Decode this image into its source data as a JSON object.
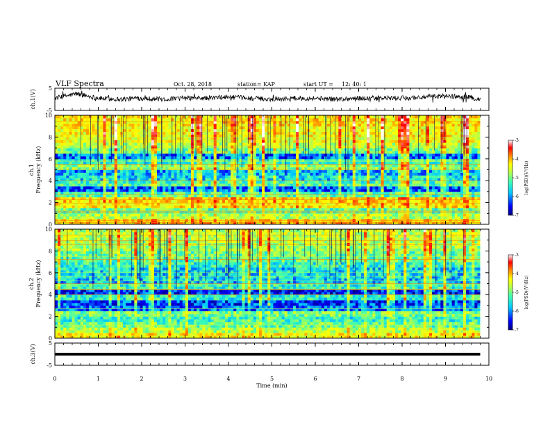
{
  "header": {
    "title": "VLF Spectra",
    "date": "Oct. 28, 2018",
    "station": "station= KAP",
    "start_label": "start  UT =",
    "start_time": "12: 40: 1"
  },
  "chart_data": [
    {
      "type": "line",
      "name": "ch1-waveform",
      "ylabel": "ch.1(V)",
      "ylim": [
        -5,
        5
      ],
      "yticks": [
        "5",
        "-5"
      ],
      "xlim": [
        0,
        10
      ],
      "x": [
        0.0,
        0.5,
        1.0,
        1.5,
        2.0,
        2.5,
        3.0,
        3.5,
        4.0,
        4.5,
        5.0,
        5.5,
        6.0,
        6.5,
        7.0,
        7.5,
        8.0,
        8.5,
        9.0,
        9.5,
        9.8
      ],
      "y": [
        0.5,
        2.5,
        0.5,
        0,
        0.5,
        0,
        0.5,
        0.5,
        1.0,
        0.5,
        0,
        0.5,
        0.5,
        0,
        0.5,
        0.5,
        0.5,
        1.0,
        1.5,
        1.0,
        0
      ]
    },
    {
      "type": "heatmap",
      "name": "ch1-spectrogram",
      "ylabel": "ch.1\nFrequency (kHz)",
      "ylim": [
        0,
        10
      ],
      "yticks": [
        "0",
        "2",
        "4",
        "6",
        "8",
        "10"
      ],
      "xlim": [
        0,
        9.8
      ],
      "z_range": [
        -7,
        -3
      ],
      "z_ticks": [
        "-3",
        "-4",
        "-5",
        "-6",
        "-7"
      ],
      "z_label": "log(PSD)(V²/Hz)",
      "colormap": [
        "#000080",
        "#0000ff",
        "#00c8ff",
        "#40ffb0",
        "#c0ff40",
        "#ffff00",
        "#ff8000",
        "#ff0000",
        "#ffffff"
      ],
      "frequency_khz": [
        0.25,
        0.75,
        1.25,
        1.75,
        2.25,
        2.75,
        3.25,
        3.75,
        4.25,
        4.75,
        5.25,
        5.75,
        6.25,
        6.75,
        7.25,
        7.75,
        8.25,
        8.75,
        9.25,
        9.75
      ],
      "mean_log_psd": [
        -4.3,
        -5.0,
        -5.4,
        -4.5,
        -4.4,
        -5.5,
        -6.3,
        -5.5,
        -5.8,
        -6.0,
        -5.2,
        -5.6,
        -6.2,
        -5.3,
        -4.9,
        -4.7,
        -4.6,
        -4.6,
        -4.5,
        -4.5
      ]
    },
    {
      "type": "heatmap",
      "name": "ch2-spectrogram",
      "ylabel": "ch.2\nFrequency (kHz)",
      "ylim": [
        0,
        10
      ],
      "yticks": [
        "0",
        "2",
        "4",
        "6",
        "8",
        "10"
      ],
      "xlim": [
        0,
        9.8
      ],
      "z_range": [
        -7,
        -3
      ],
      "z_ticks": [
        "-3",
        "-4",
        "-5",
        "-6",
        "-7"
      ],
      "z_label": "log(PSD)(V²/Hz)",
      "colormap": [
        "#000080",
        "#0000ff",
        "#00c8ff",
        "#40ffb0",
        "#c0ff40",
        "#ffff00",
        "#ff8000",
        "#ff0000",
        "#ffffff"
      ],
      "frequency_khz": [
        0.25,
        0.75,
        1.25,
        1.75,
        2.25,
        2.75,
        3.25,
        3.75,
        4.25,
        4.75,
        5.25,
        5.75,
        6.25,
        6.75,
        7.25,
        7.75,
        8.25,
        8.75,
        9.25,
        9.75
      ],
      "mean_log_psd": [
        -4.6,
        -5.0,
        -5.4,
        -5.6,
        -5.3,
        -6.2,
        -6.4,
        -5.6,
        -6.5,
        -5.6,
        -5.9,
        -5.8,
        -5.8,
        -5.6,
        -5.4,
        -5.3,
        -5.1,
        -5.0,
        -4.9,
        -4.9
      ]
    },
    {
      "type": "line",
      "name": "ch3-waveform",
      "ylabel": "ch.3(V)",
      "ylim": [
        -5,
        5
      ],
      "yticks": [
        "5",
        "-5"
      ],
      "xlim": [
        0,
        10
      ],
      "x": [
        0,
        9.8
      ],
      "y": [
        0,
        0
      ]
    }
  ],
  "xaxis": {
    "label": "Time  (min)",
    "ticks": [
      "0",
      "1",
      "2",
      "3",
      "4",
      "5",
      "6",
      "7",
      "8",
      "9",
      "10"
    ]
  }
}
